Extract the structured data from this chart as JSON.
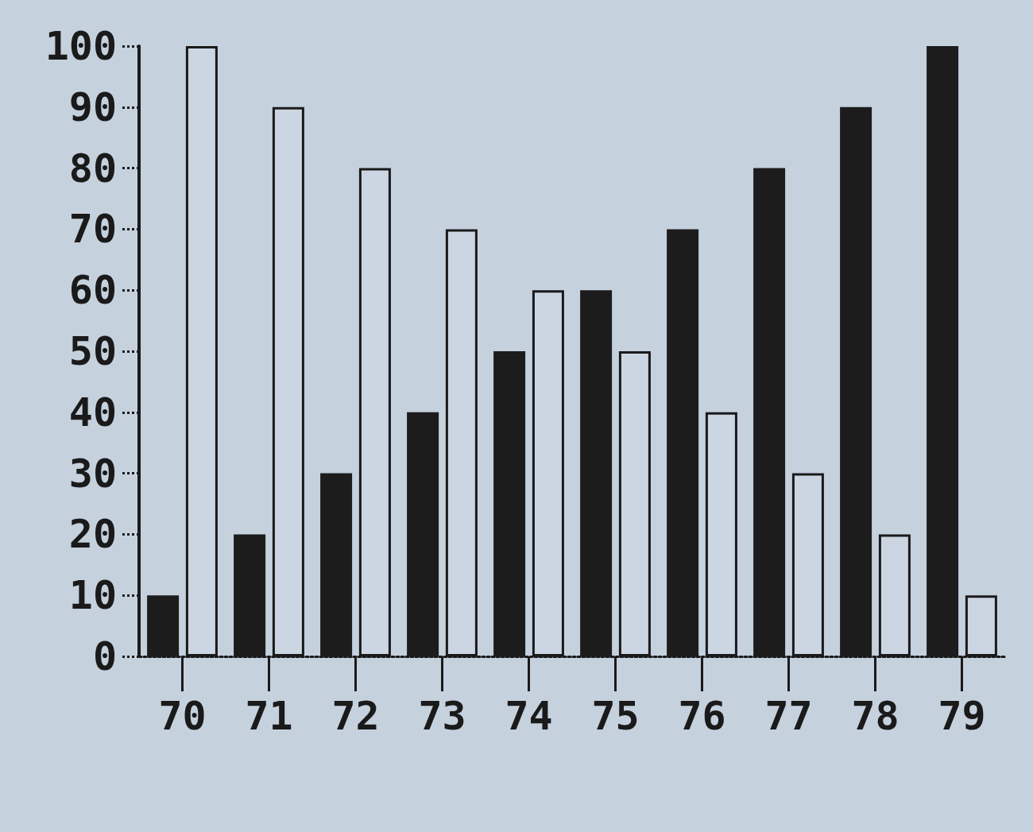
{
  "chart_data": {
    "type": "bar",
    "categories": [
      "70",
      "71",
      "72",
      "73",
      "74",
      "75",
      "76",
      "77",
      "78",
      "79"
    ],
    "series": [
      {
        "color": "#1c1c1c",
        "values": [
          10,
          20,
          30,
          40,
          50,
          60,
          70,
          80,
          90,
          100
        ]
      },
      {
        "color": "#ccd6e2",
        "values": [
          100,
          90,
          80,
          70,
          60,
          50,
          40,
          30,
          20,
          10
        ]
      }
    ],
    "ylim": [
      0,
      100
    ],
    "yticks": [
      0,
      10,
      20,
      30,
      40,
      50,
      60,
      70,
      80,
      90,
      100
    ]
  }
}
